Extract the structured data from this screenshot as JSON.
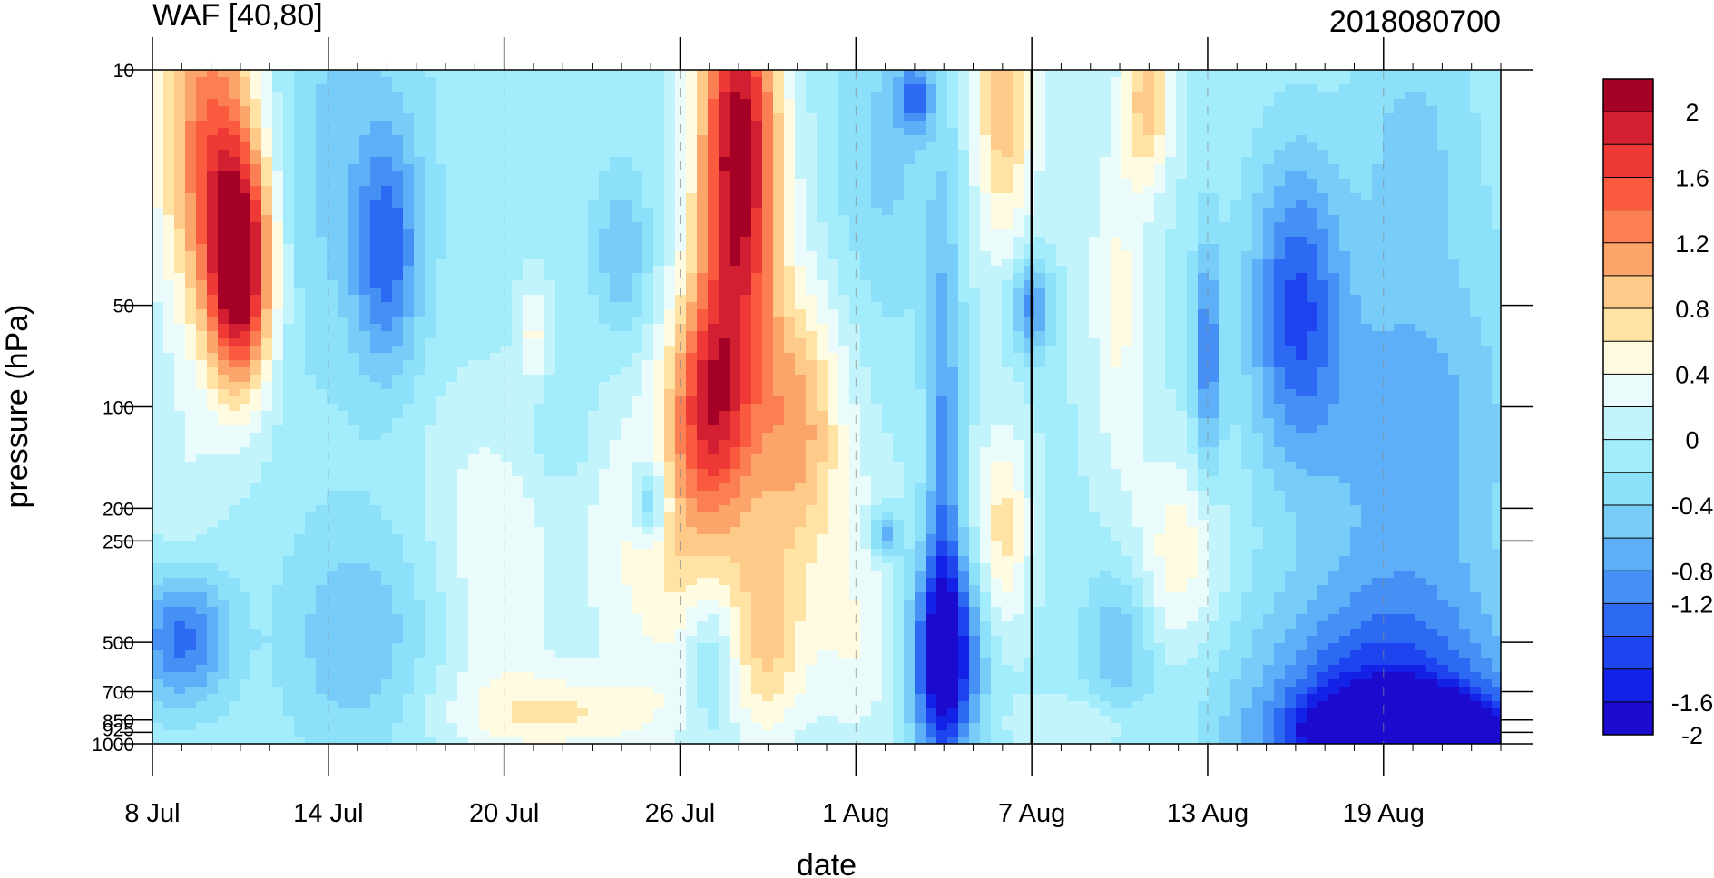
{
  "chart_data": {
    "type": "heatmap",
    "title": "WAF [40,80]",
    "subtitle": "2018080700",
    "xlabel": "date",
    "ylabel": "pressure (hPa)",
    "x_ticks": [
      "8 Jul",
      "14 Jul",
      "20 Jul",
      "26 Jul",
      "1 Aug",
      "7 Aug",
      "13 Aug",
      "19 Aug"
    ],
    "x_tick_dates": [
      "2018-07-08",
      "2018-07-14",
      "2018-07-20",
      "2018-07-26",
      "2018-08-01",
      "2018-08-07",
      "2018-08-13",
      "2018-08-19"
    ],
    "x_range": [
      "2018-07-08",
      "2018-08-23"
    ],
    "y_ticks": [
      "10",
      "50",
      "100",
      "200",
      "250",
      "500",
      "700",
      "850",
      "925",
      "1000"
    ],
    "y_tick_values": [
      10,
      50,
      100,
      200,
      250,
      500,
      700,
      850,
      925,
      1000
    ],
    "y_scale": "log",
    "y_range": [
      1000,
      10
    ],
    "y_inverted": true,
    "reference_line_date": "2018-08-07",
    "colorbar": {
      "labels": [
        "2",
        "1.6",
        "1.2",
        "0.8",
        "0.4",
        "0",
        "-0.4",
        "-0.8",
        "-1.2",
        "-1.6",
        "-2"
      ],
      "label_values": [
        2,
        1.6,
        1.2,
        0.8,
        0.4,
        0,
        -0.4,
        -0.8,
        -1.2,
        -1.6,
        -2
      ],
      "colors": [
        "#a50026",
        "#d21f32",
        "#ef3937",
        "#fa5a3e",
        "#fc7f53",
        "#fca56b",
        "#fdca8a",
        "#fee3a4",
        "#fffbe0",
        "#e9fcfb",
        "#c4f4fb",
        "#a3ecfb",
        "#8de0f9",
        "#78cdf8",
        "#5db0f7",
        "#4690f5",
        "#2d6af3",
        "#1e44ef",
        "#1422e8",
        "#1a0bcf"
      ]
    },
    "blobs": [
      {
        "date": "2018-07-11",
        "p": 40,
        "v": 2.2,
        "rx": 1.1,
        "ry": 0.35
      },
      {
        "date": "2018-07-10",
        "p": 16,
        "v": 1.5,
        "rx": 1.8,
        "ry": 0.55
      },
      {
        "date": "2018-07-09",
        "p": 300,
        "v": 0.3,
        "rx": 1.2,
        "ry": 0.5
      },
      {
        "date": "2018-07-09",
        "p": 480,
        "v": -1.25,
        "rx": 1.5,
        "ry": 0.22
      },
      {
        "date": "2018-07-15",
        "p": 500,
        "v": -0.55,
        "rx": 2.5,
        "ry": 0.35
      },
      {
        "date": "2018-07-16",
        "p": 35,
        "v": -0.9,
        "rx": 1.1,
        "ry": 0.35
      },
      {
        "date": "2018-07-14",
        "p": 18,
        "v": -0.4,
        "rx": 3.5,
        "ry": 0.7
      },
      {
        "date": "2018-07-19",
        "p": 180,
        "v": 0.25,
        "rx": 2.2,
        "ry": 0.35
      },
      {
        "date": "2018-07-21",
        "p": 60,
        "v": 0.5,
        "rx": 0.5,
        "ry": 0.15
      },
      {
        "date": "2018-07-20",
        "p": 400,
        "v": 0.3,
        "rx": 1.8,
        "ry": 0.35
      },
      {
        "date": "2018-07-22",
        "p": 820,
        "v": 0.6,
        "rx": 3.5,
        "ry": 0.12
      },
      {
        "date": "2018-07-18",
        "p": 700,
        "v": 0.1,
        "rx": 3.0,
        "ry": 0.2
      },
      {
        "date": "2018-07-22",
        "p": 120,
        "v": -0.25,
        "rx": 1.0,
        "ry": 0.15
      },
      {
        "date": "2018-07-24",
        "p": 35,
        "v": -0.55,
        "rx": 1.0,
        "ry": 0.25
      },
      {
        "date": "2018-07-28",
        "p": 18,
        "v": 2.3,
        "rx": 1.4,
        "ry": 0.6
      },
      {
        "date": "2018-07-27",
        "p": 95,
        "v": 1.5,
        "rx": 1.4,
        "ry": 0.35
      },
      {
        "date": "2018-07-30",
        "p": 110,
        "v": 1.05,
        "rx": 1.6,
        "ry": 0.4
      },
      {
        "date": "2018-07-26",
        "p": 260,
        "v": 0.7,
        "rx": 3.0,
        "ry": 0.45
      },
      {
        "date": "2018-07-25",
        "p": 190,
        "v": -0.85,
        "rx": 0.6,
        "ry": 0.12
      },
      {
        "date": "2018-07-27",
        "p": 550,
        "v": -0.5,
        "rx": 0.8,
        "ry": 0.22
      },
      {
        "date": "2018-07-29",
        "p": 500,
        "v": 0.7,
        "rx": 1.2,
        "ry": 0.3
      },
      {
        "date": "2018-08-01",
        "p": 350,
        "v": 0.3,
        "rx": 1.8,
        "ry": 0.4
      },
      {
        "date": "2018-08-01",
        "p": 600,
        "v": 0.2,
        "rx": 2.2,
        "ry": 0.25
      },
      {
        "date": "2018-08-02",
        "p": 18,
        "v": -0.4,
        "rx": 1.8,
        "ry": 0.5
      },
      {
        "date": "2018-08-03",
        "p": 12,
        "v": -0.9,
        "rx": 0.6,
        "ry": 0.1
      },
      {
        "date": "2018-08-02",
        "p": 240,
        "v": -0.85,
        "rx": 0.5,
        "ry": 0.07
      },
      {
        "date": "2018-08-04",
        "p": 560,
        "v": -1.8,
        "rx": 1.2,
        "ry": 0.3
      },
      {
        "date": "2018-08-04",
        "p": 150,
        "v": -0.8,
        "rx": 0.6,
        "ry": 0.8
      },
      {
        "date": "2018-08-06",
        "p": 230,
        "v": 0.75,
        "rx": 0.9,
        "ry": 0.3
      },
      {
        "date": "2018-08-06",
        "p": 12,
        "v": 1.0,
        "rx": 1.0,
        "ry": 0.45
      },
      {
        "date": "2018-08-07",
        "p": 50,
        "v": -0.9,
        "rx": 0.7,
        "ry": 0.15
      },
      {
        "date": "2018-08-08",
        "p": 15,
        "v": 0.15,
        "rx": 1.2,
        "ry": 0.6
      },
      {
        "date": "2018-08-10",
        "p": 50,
        "v": 0.5,
        "rx": 1.0,
        "ry": 0.55
      },
      {
        "date": "2018-08-11",
        "p": 12,
        "v": 0.95,
        "rx": 0.8,
        "ry": 0.25
      },
      {
        "date": "2018-08-10",
        "p": 500,
        "v": -0.55,
        "rx": 1.2,
        "ry": 0.25
      },
      {
        "date": "2018-08-12",
        "p": 280,
        "v": 0.6,
        "rx": 1.5,
        "ry": 0.3
      },
      {
        "date": "2018-08-09",
        "p": 880,
        "v": 0.3,
        "rx": 2.5,
        "ry": 0.08
      },
      {
        "date": "2018-08-13",
        "p": 70,
        "v": -0.9,
        "rx": 0.5,
        "ry": 0.35
      },
      {
        "date": "2018-08-16",
        "p": 50,
        "v": -1.1,
        "rx": 1.6,
        "ry": 0.45
      },
      {
        "date": "2018-08-20",
        "p": 120,
        "v": -0.7,
        "rx": 3.5,
        "ry": 0.6
      },
      {
        "date": "2018-08-20",
        "p": 15,
        "v": -0.35,
        "rx": 2.0,
        "ry": 0.35
      },
      {
        "date": "2018-08-19",
        "p": 800,
        "v": -1.3,
        "rx": 4.5,
        "ry": 0.35
      },
      {
        "date": "2018-08-20",
        "p": 950,
        "v": -2.3,
        "rx": 3.5,
        "ry": 0.12
      }
    ]
  }
}
